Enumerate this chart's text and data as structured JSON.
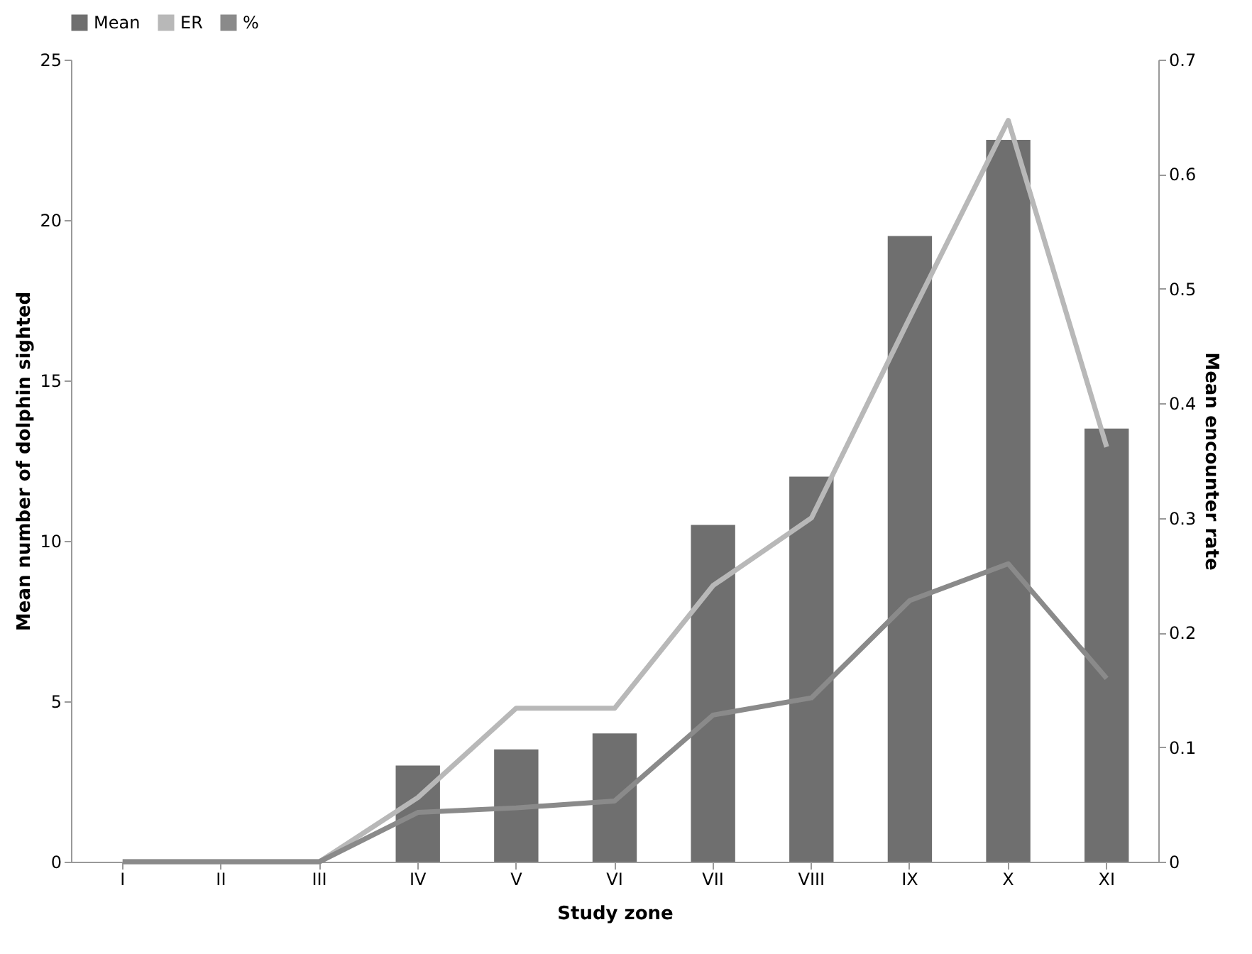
{
  "chart_data": {
    "type": "bar",
    "xlabel": "Study zone",
    "ylabel": "Mean number of dolphin sighted",
    "y2label": "Mean encounter rate",
    "categories": [
      "I",
      "II",
      "III",
      "IV",
      "V",
      "VI",
      "VII",
      "VIII",
      "IX",
      "X",
      "XI"
    ],
    "series": [
      {
        "name": "Mean",
        "color": "#6f6f6f",
        "values": [
          0,
          0,
          0,
          3,
          3.5,
          4,
          10.5,
          12,
          19.5,
          22.5,
          13.5
        ]
      },
      {
        "name": "ER",
        "type": "line",
        "axis": "y2",
        "color": "#b8b8b8",
        "values": [
          0,
          0,
          0,
          0.056,
          0.134,
          0.134,
          0.241,
          0.3,
          0.475,
          0.647,
          0.362
        ]
      },
      {
        "name": "%",
        "type": "line",
        "axis": "y2",
        "color": "#8a8a8a",
        "values": [
          0,
          0,
          0,
          0.043,
          0.047,
          0.053,
          0.128,
          0.143,
          0.228,
          0.26,
          0.16
        ]
      }
    ],
    "ylim": [
      0,
      25
    ],
    "yticks": [
      0,
      5,
      10,
      15,
      20,
      25
    ],
    "y2lim": [
      0,
      0.7
    ],
    "y2ticks": [
      0,
      0.1,
      0.2,
      0.3,
      0.4,
      0.5,
      0.6,
      0.7
    ],
    "legend": "top",
    "grid": false
  }
}
